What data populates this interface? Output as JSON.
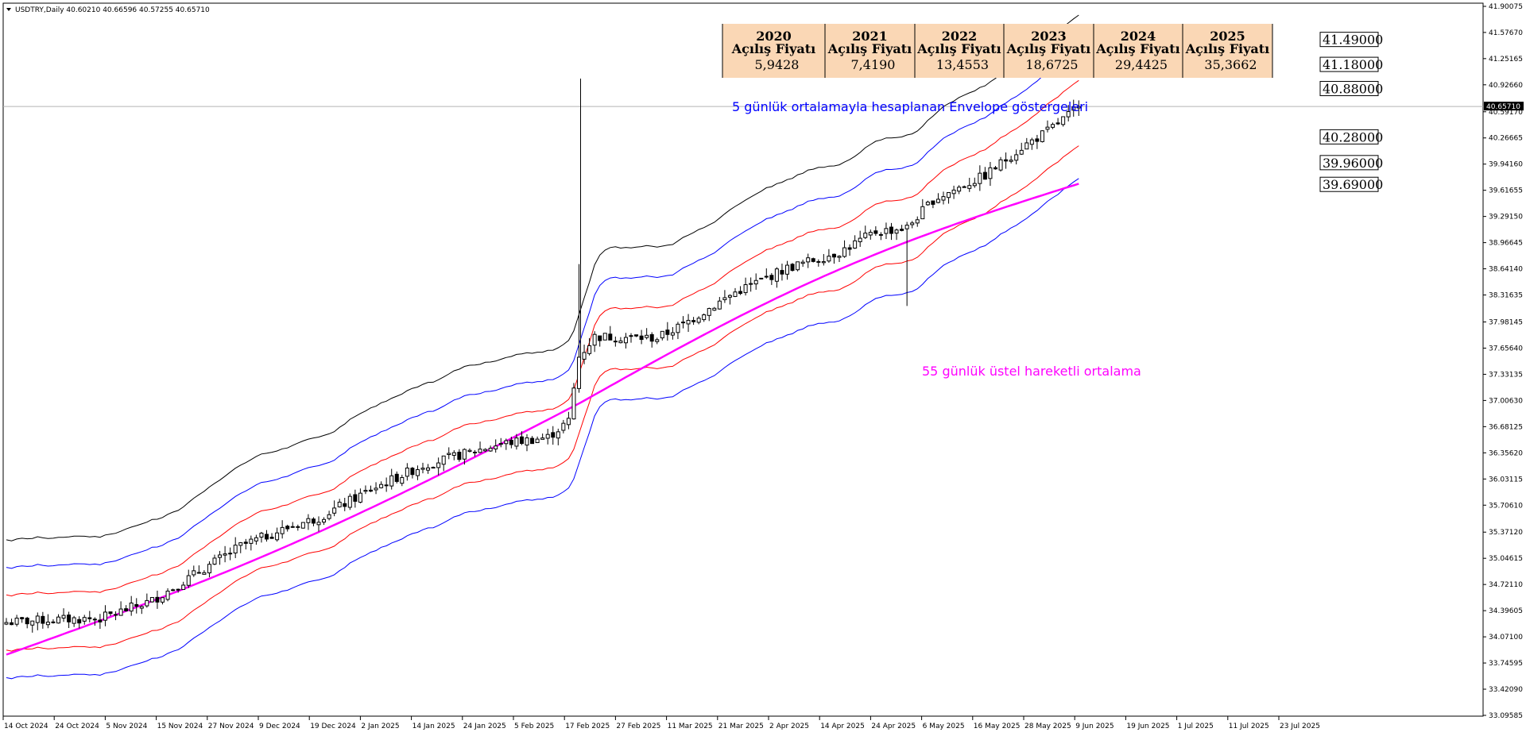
{
  "header": {
    "symbol_line": "USDTRY,Daily  40.60210 40.66596 40.57255 40.65710",
    "menu_icon": "triangle-down-icon"
  },
  "price_label": {
    "value": "40.65710",
    "price": 40.6571
  },
  "opening_prices": [
    {
      "year": "2020",
      "label": "Açılış Fiyatı",
      "value": "5,9428"
    },
    {
      "year": "2021",
      "label": "Açılış Fiyatı",
      "value": "7,4190"
    },
    {
      "year": "2022",
      "label": "Açılış Fiyatı",
      "value": "13,4553"
    },
    {
      "year": "2023",
      "label": "Açılış Fiyatı",
      "value": "18,6725"
    },
    {
      "year": "2024",
      "label": "Açılış Fiyatı",
      "value": "29,4425"
    },
    {
      "year": "2025",
      "label": "Açılış Fiyatı",
      "value": "35,3662"
    }
  ],
  "level_labels": [
    {
      "text": "41.49000",
      "price": 41.49
    },
    {
      "text": "41.18000",
      "price": 41.18
    },
    {
      "text": "40.88000",
      "price": 40.88
    },
    {
      "text": "40.28000",
      "price": 40.28
    },
    {
      "text": "39.96000",
      "price": 39.96
    },
    {
      "text": "39.69000",
      "price": 39.69
    }
  ],
  "annotations": {
    "envelope": "5 günlük ortalamayla hesaplanan Envelope göstergeleri",
    "ema": "55 günlük üstel hareketli ortalama"
  },
  "colors": {
    "env_outer": "#000000",
    "env_mid": "#0000ff",
    "env_inner": "#ff0000",
    "ema": "#ff00ff",
    "box_bg": "#fad7b5",
    "annotation_blue": "#0000ff",
    "annotation_magenta": "#ff00ff"
  },
  "chart_data": {
    "type": "candlestick",
    "symbol": "USDTRY",
    "timeframe": "Daily",
    "ylim": [
      33.09585,
      41.90075
    ],
    "y_ticks": [
      "41.90075",
      "41.57670",
      "41.25165",
      "40.92660",
      "40.59170",
      "40.26665",
      "39.94160",
      "39.61655",
      "39.29150",
      "38.96645",
      "38.64140",
      "38.31635",
      "37.98145",
      "37.65640",
      "37.33135",
      "37.00630",
      "36.68125",
      "36.35620",
      "36.03115",
      "35.70610",
      "35.37120",
      "35.04615",
      "34.72110",
      "34.39605",
      "34.07100",
      "33.74595",
      "33.42090",
      "33.09585"
    ],
    "x_labels": [
      "14 Oct 2024",
      "24 Oct 2024",
      "5 Nov 2024",
      "15 Nov 2024",
      "27 Nov 2024",
      "9 Dec 2024",
      "19 Dec 2024",
      "2 Jan 2025",
      "14 Jan 2025",
      "24 Jan 2025",
      "5 Feb 2025",
      "17 Feb 2025",
      "27 Feb 2025",
      "11 Mar 2025",
      "21 Mar 2025",
      "2 Apr 2025",
      "14 Apr 2025",
      "24 Apr 2025",
      "6 May 2025",
      "16 May 2025",
      "28 May 2025",
      "9 Jun 2025",
      "19 Jun 2025",
      "1 Jul 2025",
      "11 Jul 2025",
      "23 Jul 2025"
    ],
    "close_anchors": [
      [
        0,
        34.25
      ],
      [
        8,
        34.28
      ],
      [
        18,
        34.3
      ],
      [
        28,
        34.52
      ],
      [
        35,
        34.8
      ],
      [
        45,
        35.2
      ],
      [
        55,
        35.45
      ],
      [
        60,
        35.55
      ],
      [
        70,
        35.9
      ],
      [
        80,
        36.2
      ],
      [
        95,
        36.47
      ],
      [
        104,
        36.55
      ],
      [
        108,
        36.75
      ],
      [
        110,
        37.55
      ],
      [
        113,
        37.8
      ],
      [
        125,
        37.78
      ],
      [
        130,
        37.95
      ],
      [
        140,
        38.35
      ],
      [
        150,
        38.65
      ],
      [
        160,
        38.85
      ],
      [
        167,
        39.1
      ],
      [
        173,
        39.15
      ],
      [
        178,
        39.5
      ],
      [
        188,
        39.8
      ],
      [
        195,
        40.15
      ],
      [
        200,
        40.35
      ],
      [
        206,
        40.65
      ]
    ],
    "envelope_bands": [
      "+3%",
      "+2%",
      "+1%",
      "-1%",
      "-2%"
    ],
    "ema": {
      "period": 55,
      "start": 33.85,
      "end": 39.69
    },
    "spike_high": 38.7,
    "spike_bar": 110,
    "dip_low": 38.18,
    "dip_bar": 173,
    "bars": 207
  }
}
